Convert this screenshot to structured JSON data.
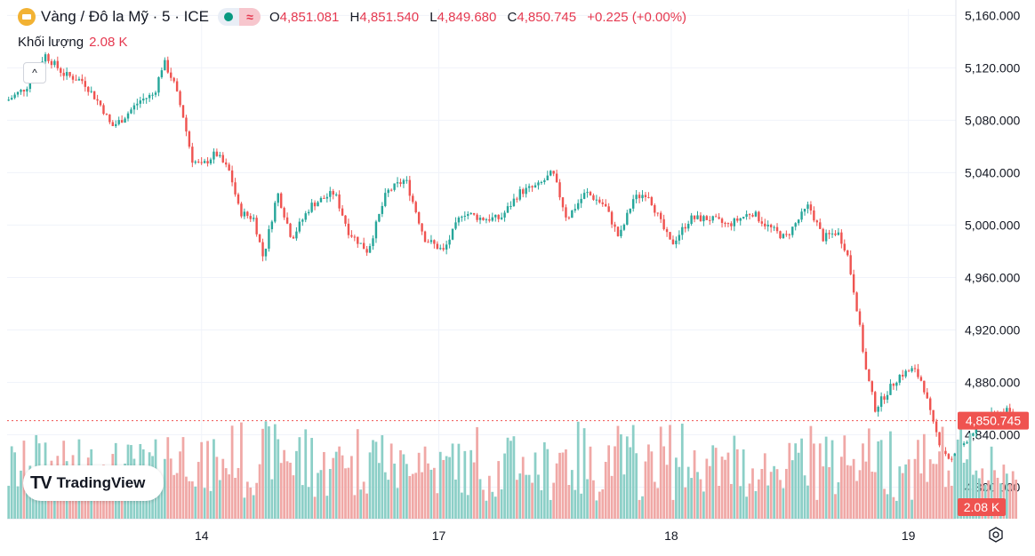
{
  "header": {
    "symbol_title": "Vàng / Đô la Mỹ · 5 · ICE",
    "ohlc": {
      "o_label": "O",
      "o_value": "4,851.081",
      "h_label": "H",
      "h_value": "4,851.540",
      "l_label": "L",
      "l_value": "4,849.680",
      "c_label": "C",
      "c_value": "4,850.745",
      "change": "+0.225 (+0.00%)"
    },
    "volume_label": "Khối lượng",
    "volume_value": "2.08 K",
    "wave_glyph": "≈",
    "collapse_glyph": "^"
  },
  "branding": {
    "logo": "TV",
    "name": "TradingView"
  },
  "colors": {
    "up": "#26a69a",
    "down": "#ef5350",
    "up_vol": "#8ccfc7",
    "down_vol": "#f0a8a6",
    "accent": "#e53950",
    "grid": "#f0f3fa",
    "text": "#131722"
  },
  "chart_data": {
    "type": "candlestick",
    "interval": "5 min",
    "ylim": [
      4780,
      5165
    ],
    "y_ticks": [
      "5,160.000",
      "5,120.000",
      "5,080.000",
      "5,040.000",
      "5,000.000",
      "4,960.000",
      "4,920.000",
      "4,880.000",
      "4,840.000",
      "4,800.000"
    ],
    "y_tick_values": [
      5160,
      5120,
      5080,
      5040,
      5000,
      4960,
      4920,
      4880,
      4840,
      4800
    ],
    "x_ticks": [
      "14",
      "17",
      "18",
      "19"
    ],
    "x_tick_positions": [
      0.205,
      0.455,
      0.7,
      0.95
    ],
    "last_price": 4850.745,
    "last_price_label": "4,850.745",
    "last_volume_label": "2.08 K",
    "price_path": [
      [
        0.0,
        5095
      ],
      [
        0.02,
        5105
      ],
      [
        0.04,
        5130
      ],
      [
        0.06,
        5115
      ],
      [
        0.08,
        5110
      ],
      [
        0.1,
        5090
      ],
      [
        0.11,
        5075
      ],
      [
        0.12,
        5080
      ],
      [
        0.14,
        5095
      ],
      [
        0.155,
        5100
      ],
      [
        0.165,
        5125
      ],
      [
        0.175,
        5110
      ],
      [
        0.185,
        5085
      ],
      [
        0.195,
        5050
      ],
      [
        0.205,
        5045
      ],
      [
        0.22,
        5055
      ],
      [
        0.235,
        5040
      ],
      [
        0.245,
        5010
      ],
      [
        0.26,
        5005
      ],
      [
        0.27,
        4975
      ],
      [
        0.285,
        5025
      ],
      [
        0.3,
        4990
      ],
      [
        0.32,
        5015
      ],
      [
        0.345,
        5025
      ],
      [
        0.36,
        4995
      ],
      [
        0.38,
        4980
      ],
      [
        0.4,
        5025
      ],
      [
        0.42,
        5035
      ],
      [
        0.44,
        4990
      ],
      [
        0.46,
        4980
      ],
      [
        0.48,
        5010
      ],
      [
        0.5,
        5005
      ],
      [
        0.52,
        5005
      ],
      [
        0.54,
        5025
      ],
      [
        0.56,
        5030
      ],
      [
        0.575,
        5040
      ],
      [
        0.59,
        5005
      ],
      [
        0.61,
        5025
      ],
      [
        0.63,
        5015
      ],
      [
        0.645,
        4990
      ],
      [
        0.66,
        5020
      ],
      [
        0.675,
        5025
      ],
      [
        0.69,
        5000
      ],
      [
        0.7,
        4985
      ],
      [
        0.72,
        5005
      ],
      [
        0.74,
        5005
      ],
      [
        0.76,
        5000
      ],
      [
        0.785,
        5010
      ],
      [
        0.8,
        5000
      ],
      [
        0.82,
        4990
      ],
      [
        0.835,
        5005
      ],
      [
        0.845,
        5015
      ],
      [
        0.86,
        4990
      ],
      [
        0.875,
        4995
      ],
      [
        0.885,
        4980
      ],
      [
        0.895,
        4940
      ],
      [
        0.905,
        4890
      ],
      [
        0.915,
        4860
      ],
      [
        0.925,
        4870
      ],
      [
        0.94,
        4885
      ],
      [
        0.955,
        4890
      ],
      [
        0.965,
        4880
      ],
      [
        0.975,
        4850
      ],
      [
        0.985,
        4830
      ],
      [
        0.995,
        4820
      ],
      [
        1.01,
        4835
      ],
      [
        1.025,
        4850
      ],
      [
        1.04,
        4855
      ],
      [
        1.055,
        4858
      ],
      [
        1.065,
        4850
      ]
    ]
  }
}
